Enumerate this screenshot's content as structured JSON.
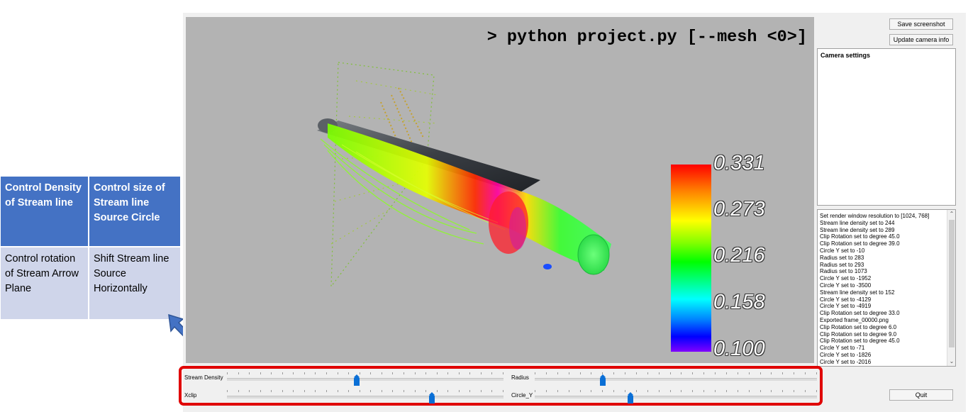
{
  "annotation_table": {
    "cells": [
      {
        "text": "Control Density of Stream line"
      },
      {
        "text": "Control size of Stream line Source Circle"
      },
      {
        "text": "Control rotation of Stream Arrow Plane"
      },
      {
        "text": "Shift Stream line Source Horizontally"
      }
    ]
  },
  "viewport": {
    "command": "> python project.py [--mesh <0>]",
    "colorbar": {
      "labels": [
        "0.331",
        "0.273",
        "0.216",
        "0.158",
        "0.100"
      ],
      "min": 0.1,
      "max": 0.331,
      "colors": [
        "#ff0000",
        "#ffff00",
        "#00ff00",
        "#00ffff",
        "#0000ff",
        "#8000ff"
      ]
    }
  },
  "right_panel": {
    "save_screenshot": "Save screenshot",
    "update_camera": "Update camera info",
    "camera_settings_title": "Camera settings",
    "log": [
      "Set render window resolution to [1024, 768]",
      "Stream line density set to 244",
      "Stream line density set to 289",
      "Clip Rotation set to degree 45.0",
      "Clip Rotation set to degree 39.0",
      "Circle Y set to -10",
      "Radius set to 283",
      "Radius set to 293",
      "Radius set to 1073",
      "Circle Y set to -1952",
      "Circle Y set to -3500",
      "Stream line density set to 152",
      "Circle Y set to -4129",
      "Circle Y set to -4919",
      "Clip Rotation set to degree 33.0",
      "Exported frame_00000.png",
      "Clip Rotation set to degree 6.0",
      "Clip Rotation set to degree 9.0",
      "Clip Rotation set to degree 45.0",
      "Circle Y set to -71",
      "Circle Y set to -1826",
      "Circle Y set to -2016"
    ],
    "quit": "Quit"
  },
  "sliders": {
    "stream_density": {
      "label": "Stream Density",
      "value": 0.47
    },
    "radius": {
      "label": "Radius",
      "value": 0.24
    },
    "xclip": {
      "label": "Xclip",
      "value": 0.74
    },
    "circle_y": {
      "label": "Circle_Y",
      "value": 0.34
    }
  },
  "colors": {
    "table_header": "#4472c4",
    "table_body": "#cfd5ea",
    "highlight": "#e00000",
    "viewport_bg": "#b3b3b3",
    "slider_handle": "#0a6fd6"
  }
}
